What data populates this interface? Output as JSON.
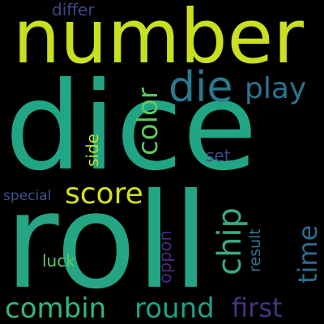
{
  "cloud": {
    "background": "#000000",
    "words": [
      {
        "key": "dice",
        "text": "dice",
        "color": "#21a685"
      },
      {
        "key": "number",
        "text": "number",
        "color": "#c8e020"
      },
      {
        "key": "roll",
        "text": "roll",
        "color": "#25a584"
      },
      {
        "key": "die",
        "text": "die",
        "color": "#2a788e"
      },
      {
        "key": "play",
        "text": "play",
        "color": "#2b758e"
      },
      {
        "key": "score",
        "text": "score",
        "color": "#d2e21b"
      },
      {
        "key": "color",
        "text": "color",
        "color": "#5ec962"
      },
      {
        "key": "chip",
        "text": "chip",
        "color": "#3ba87f"
      },
      {
        "key": "time",
        "text": "time",
        "color": "#2f6b8e"
      },
      {
        "key": "combin",
        "text": "combin",
        "color": "#35b779"
      },
      {
        "key": "round",
        "text": "round",
        "color": "#1fa187"
      },
      {
        "key": "first",
        "text": "first",
        "color": "#46327e"
      },
      {
        "key": "side",
        "text": "side",
        "color": "#c2df23"
      },
      {
        "key": "set",
        "text": "set",
        "color": "#3e4a89"
      },
      {
        "key": "special",
        "text": "special",
        "color": "#3b528b"
      },
      {
        "key": "luck",
        "text": "luck",
        "color": "#5ec962"
      },
      {
        "key": "oppon",
        "text": "oppon",
        "color": "#482878"
      },
      {
        "key": "result",
        "text": "result",
        "color": "#2c728e"
      },
      {
        "key": "differ",
        "text": "differ",
        "color": "#3e4989"
      }
    ]
  }
}
